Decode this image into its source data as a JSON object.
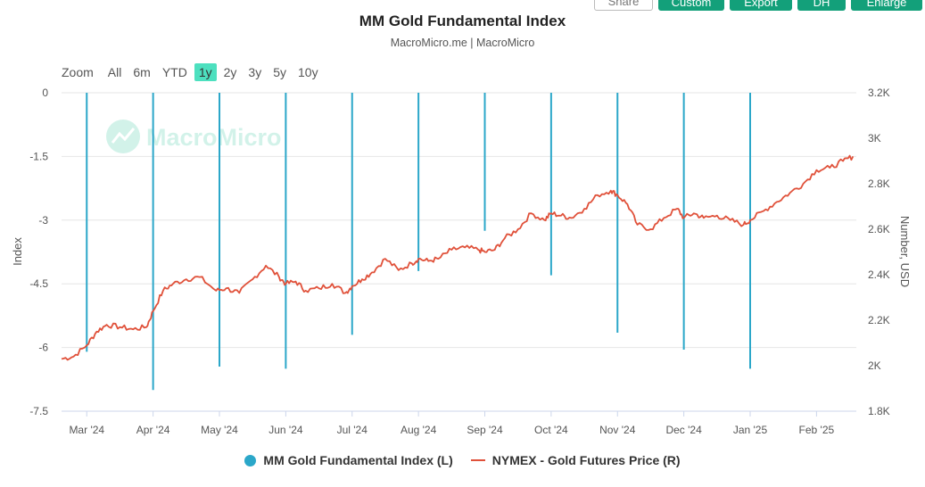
{
  "toolbar": {
    "share_label": "Share",
    "custom_label": "Custom",
    "export_label": "Export",
    "dh_label": "DH",
    "enlarge_label": "Enlarge"
  },
  "zoom": {
    "label": "Zoom",
    "options": [
      "All",
      "6m",
      "YTD",
      "1y",
      "2y",
      "3y",
      "5y",
      "10y"
    ],
    "active": "1y"
  },
  "watermark": "MacroMicro",
  "colors": {
    "index": "#2ba7c9",
    "gold": "#e0513a",
    "accent": "#13a07a",
    "active_zoom": "#4de0bf"
  },
  "chart_data": {
    "type": "line",
    "title": "MM Gold Fundamental Index",
    "subtitle": "MacroMicro.me | MacroMicro",
    "left_axis": {
      "label": "Index",
      "range": [
        -7.5,
        0
      ],
      "ticks": [
        "0",
        "-1.5",
        "-3",
        "-4.5",
        "-6",
        "-7.5"
      ]
    },
    "right_axis": {
      "label": "Number, USD",
      "range": [
        1800,
        3200
      ],
      "ticks": [
        "3.2K",
        "3K",
        "2.8K",
        "2.6K",
        "2.4K",
        "2.2K",
        "2K",
        "1.8K"
      ]
    },
    "x_ticks": [
      "Mar '24",
      "Apr '24",
      "May '24",
      "Jun '24",
      "Jul '24",
      "Aug '24",
      "Sep '24",
      "Oct '24",
      "Nov '24",
      "Dec '24",
      "Jan '25",
      "Feb '25"
    ],
    "x_range": [
      -0.38,
      11.6
    ],
    "legend": [
      "MM Gold Fundamental Index (L)",
      "NYMEX - Gold Futures Price (R)"
    ],
    "series": [
      {
        "name": "MM Gold Fundamental Index (L)",
        "axis": "left",
        "style": "column",
        "points": [
          [
            0,
            -6.1
          ],
          [
            1,
            -7.0
          ],
          [
            2,
            -6.45
          ],
          [
            3,
            -6.5
          ],
          [
            4,
            -5.7
          ],
          [
            5,
            -4.2
          ],
          [
            6,
            -3.25
          ],
          [
            7,
            -4.3
          ],
          [
            8,
            -5.65
          ],
          [
            9,
            -6.05
          ],
          [
            10,
            -6.5
          ]
        ]
      },
      {
        "name": "NYMEX - Gold Futures Price (R)",
        "axis": "right",
        "style": "line",
        "points": [
          [
            -0.38,
            2030
          ],
          [
            -0.2,
            2040
          ],
          [
            0,
            2090
          ],
          [
            0.15,
            2150
          ],
          [
            0.3,
            2180
          ],
          [
            0.5,
            2170
          ],
          [
            0.7,
            2160
          ],
          [
            0.9,
            2170
          ],
          [
            1.0,
            2240
          ],
          [
            1.15,
            2330
          ],
          [
            1.3,
            2360
          ],
          [
            1.5,
            2380
          ],
          [
            1.7,
            2390
          ],
          [
            1.95,
            2330
          ],
          [
            2.1,
            2340
          ],
          [
            2.3,
            2320
          ],
          [
            2.5,
            2380
          ],
          [
            2.7,
            2440
          ],
          [
            2.9,
            2390
          ],
          [
            3.0,
            2360
          ],
          [
            3.15,
            2370
          ],
          [
            3.3,
            2330
          ],
          [
            3.5,
            2340
          ],
          [
            3.7,
            2360
          ],
          [
            3.9,
            2320
          ],
          [
            4.0,
            2350
          ],
          [
            4.15,
            2380
          ],
          [
            4.3,
            2410
          ],
          [
            4.5,
            2470
          ],
          [
            4.7,
            2420
          ],
          [
            4.9,
            2450
          ],
          [
            5.0,
            2470
          ],
          [
            5.15,
            2460
          ],
          [
            5.3,
            2470
          ],
          [
            5.5,
            2510
          ],
          [
            5.7,
            2520
          ],
          [
            5.9,
            2510
          ],
          [
            6.0,
            2500
          ],
          [
            6.15,
            2510
          ],
          [
            6.3,
            2560
          ],
          [
            6.5,
            2600
          ],
          [
            6.7,
            2670
          ],
          [
            6.9,
            2640
          ],
          [
            7.0,
            2670
          ],
          [
            7.15,
            2660
          ],
          [
            7.3,
            2650
          ],
          [
            7.5,
            2690
          ],
          [
            7.7,
            2750
          ],
          [
            7.9,
            2770
          ],
          [
            8.0,
            2750
          ],
          [
            8.15,
            2710
          ],
          [
            8.3,
            2620
          ],
          [
            8.5,
            2600
          ],
          [
            8.7,
            2650
          ],
          [
            8.9,
            2690
          ],
          [
            9.0,
            2650
          ],
          [
            9.15,
            2670
          ],
          [
            9.3,
            2650
          ],
          [
            9.5,
            2660
          ],
          [
            9.7,
            2640
          ],
          [
            9.9,
            2620
          ],
          [
            10.0,
            2640
          ],
          [
            10.2,
            2680
          ],
          [
            10.4,
            2720
          ],
          [
            10.6,
            2760
          ],
          [
            10.8,
            2800
          ],
          [
            11.0,
            2860
          ],
          [
            11.2,
            2870
          ],
          [
            11.4,
            2900
          ],
          [
            11.55,
            2920
          ]
        ]
      }
    ]
  }
}
